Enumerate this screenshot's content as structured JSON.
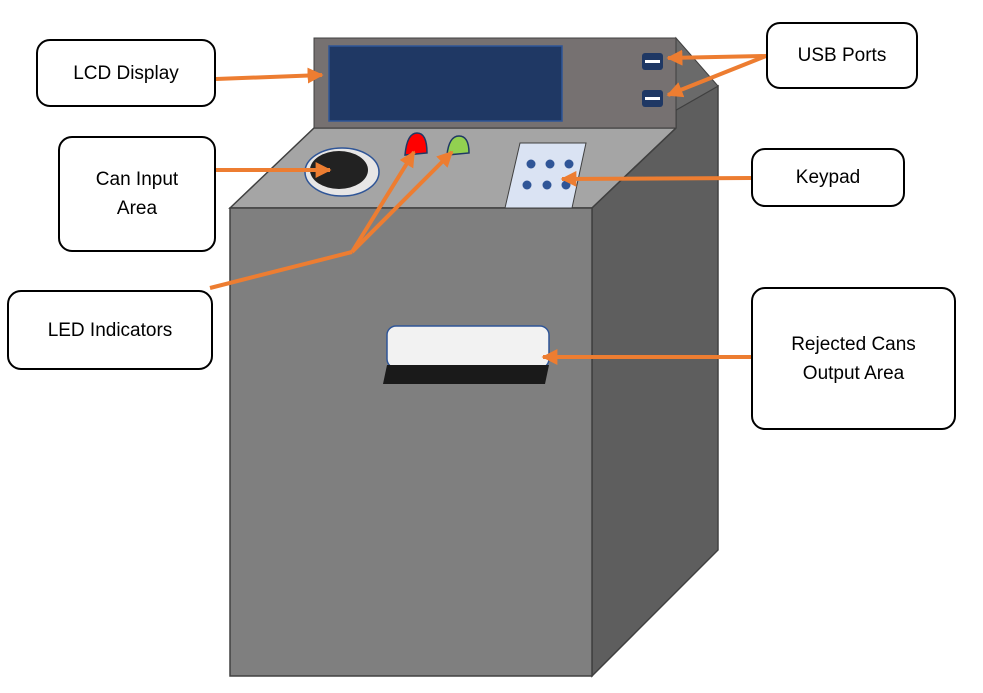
{
  "labels": {
    "lcd_display": "LCD Display",
    "usb_ports": "USB Ports",
    "can_input_area": "Can Input\nArea",
    "keypad": "Keypad",
    "led_indicators": "LED Indicators",
    "rejected_cans_output_area": "Rejected Cans\nOutput Area"
  },
  "colors": {
    "arrow": "#ED7D31",
    "body_front": "#7F7F7F",
    "body_side": "#5E5E5E",
    "body_top": "#A5A5A5",
    "lcd_panel": "#1F3864",
    "led_red": "#FF0000",
    "led_green": "#92D050",
    "keypad_buttons": "#2F5597"
  }
}
